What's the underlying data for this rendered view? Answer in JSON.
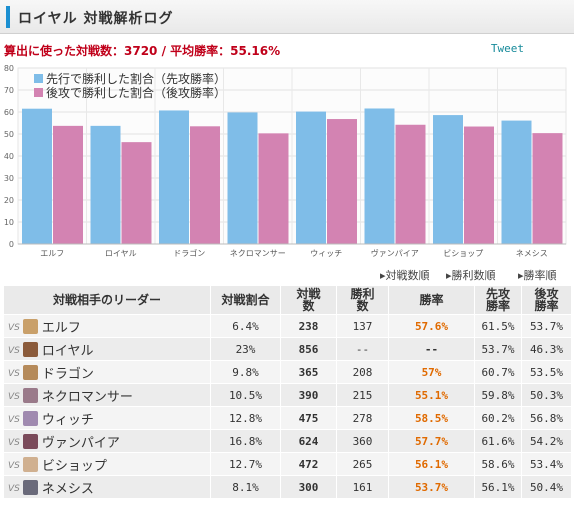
{
  "header": {
    "title": "ロイヤル 対戦解析ログ"
  },
  "summary": {
    "text": "算出に使った対戦数：3720 / 平均勝率：55.16%"
  },
  "tweet_label": "Tweet",
  "colors": {
    "first": "#7fbde8",
    "second": "#d383b2",
    "accent": "#1b8fd1",
    "summary": "#c0001a",
    "rate": "#e06a00"
  },
  "chart_data": {
    "type": "bar",
    "categories": [
      "エルフ",
      "ロイヤル",
      "ドラゴン",
      "ネクロマンサー",
      "ウィッチ",
      "ヴァンパイア",
      "ビショップ",
      "ネメシス"
    ],
    "series": [
      {
        "name": "先行で勝利した割合（先攻勝率）",
        "values": [
          61.5,
          53.7,
          60.7,
          59.8,
          60.2,
          61.6,
          58.6,
          56.1
        ]
      },
      {
        "name": "後攻で勝利した割合（後攻勝率）",
        "values": [
          53.7,
          46.3,
          53.5,
          50.3,
          56.8,
          54.2,
          53.4,
          50.4
        ]
      }
    ],
    "ylim": [
      0,
      80
    ],
    "yticks": [
      0,
      10,
      20,
      30,
      40,
      50,
      60,
      70,
      80
    ],
    "legend": "top-left",
    "grid": true
  },
  "sort_links": [
    "対戦数順",
    "勝利数順",
    "勝率順"
  ],
  "table": {
    "headers": [
      "対戦相手のリーダー",
      "対戦割合",
      "対戦数",
      "勝利数",
      "勝率",
      "先攻勝率",
      "後攻勝率"
    ],
    "rows": [
      {
        "vs": "VS",
        "icon": "elf-leader-icon",
        "icon_color": "#c9a06a",
        "name": "エルフ",
        "share": "6.4%",
        "matches": "238",
        "wins": "137",
        "rate": "57.6%",
        "first": "61.5%",
        "second": "53.7%"
      },
      {
        "vs": "VS",
        "icon": "royal-leader-icon",
        "icon_color": "#8a5a3a",
        "name": "ロイヤル",
        "share": "23%",
        "matches": "856",
        "wins": "--",
        "rate": "--",
        "first": "53.7%",
        "second": "46.3%"
      },
      {
        "vs": "VS",
        "icon": "dragon-leader-icon",
        "icon_color": "#b58a5a",
        "name": "ドラゴン",
        "share": "9.8%",
        "matches": "365",
        "wins": "208",
        "rate": "57%",
        "first": "60.7%",
        "second": "53.5%"
      },
      {
        "vs": "VS",
        "icon": "necromancer-leader-icon",
        "icon_color": "#9a7a8a",
        "name": "ネクロマンサー",
        "share": "10.5%",
        "matches": "390",
        "wins": "215",
        "rate": "55.1%",
        "first": "59.8%",
        "second": "50.3%"
      },
      {
        "vs": "VS",
        "icon": "witch-leader-icon",
        "icon_color": "#a08ab0",
        "name": "ウィッチ",
        "share": "12.8%",
        "matches": "475",
        "wins": "278",
        "rate": "58.5%",
        "first": "60.2%",
        "second": "56.8%"
      },
      {
        "vs": "VS",
        "icon": "vampire-leader-icon",
        "icon_color": "#7a4a5a",
        "name": "ヴァンパイア",
        "share": "16.8%",
        "matches": "624",
        "wins": "360",
        "rate": "57.7%",
        "first": "61.6%",
        "second": "54.2%"
      },
      {
        "vs": "VS",
        "icon": "bishop-leader-icon",
        "icon_color": "#d0b090",
        "name": "ビショップ",
        "share": "12.7%",
        "matches": "472",
        "wins": "265",
        "rate": "56.1%",
        "first": "58.6%",
        "second": "53.4%"
      },
      {
        "vs": "VS",
        "icon": "nemesis-leader-icon",
        "icon_color": "#6a6a7a",
        "name": "ネメシス",
        "share": "8.1%",
        "matches": "300",
        "wins": "161",
        "rate": "53.7%",
        "first": "56.1%",
        "second": "50.4%"
      }
    ]
  }
}
